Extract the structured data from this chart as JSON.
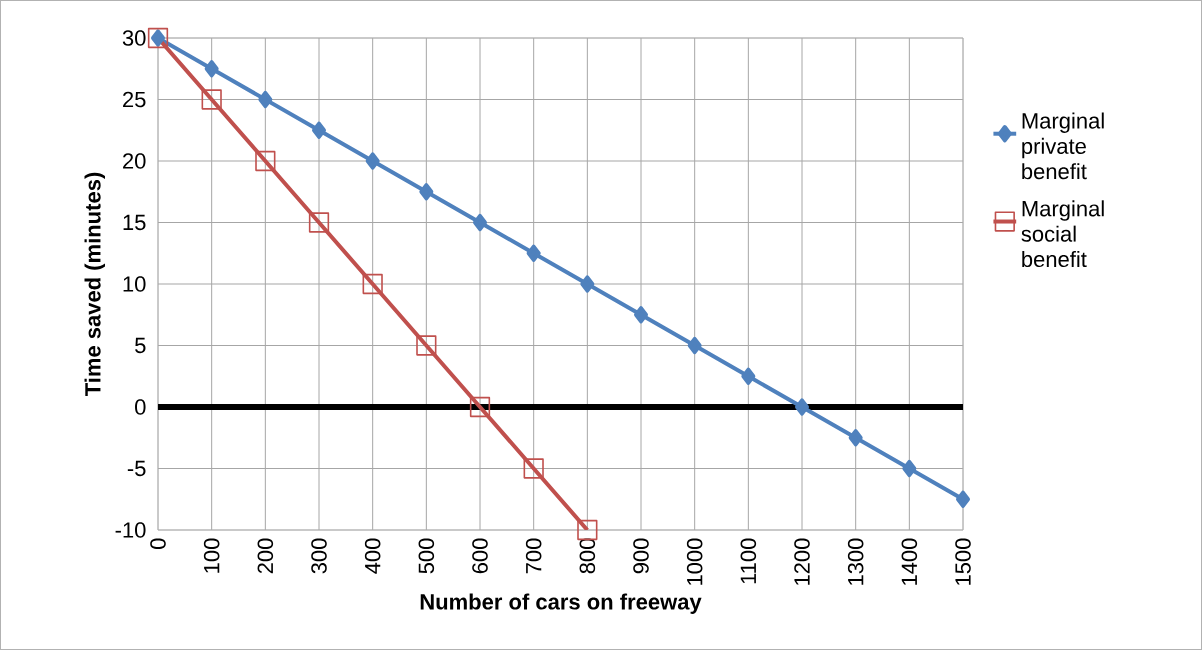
{
  "chart_data": {
    "type": "line",
    "xlabel": "Number of cars on freeway",
    "ylabel": "Time saved (minutes)",
    "categories": [
      "0",
      "100",
      "200",
      "300",
      "400",
      "500",
      "600",
      "700",
      "800",
      "900",
      "1000",
      "1100",
      "1200",
      "1300",
      "1400",
      "1500"
    ],
    "series": [
      {
        "name": "Marginal private benefit",
        "color": "#4f81bd",
        "marker": "diamond",
        "values": [
          30,
          27.5,
          25,
          22.5,
          20,
          17.5,
          15,
          12.5,
          10,
          7.5,
          5,
          2.5,
          0,
          -2.5,
          -5,
          -7.5
        ]
      },
      {
        "name": "Marginal social benefit",
        "color": "#c0504d",
        "marker": "square",
        "values": [
          30,
          25,
          20,
          15,
          10,
          5,
          0,
          -5,
          -10,
          null,
          null,
          null,
          null,
          null,
          null,
          null
        ]
      }
    ],
    "ylim": [
      -10,
      30
    ],
    "yticks": [
      -10,
      -5,
      0,
      5,
      10,
      15,
      20,
      25,
      30
    ],
    "ref_lines": [
      {
        "axis": "y",
        "value": 0,
        "color": "#000000"
      }
    ],
    "grid": true,
    "legend": "right",
    "line_style": "solid"
  }
}
